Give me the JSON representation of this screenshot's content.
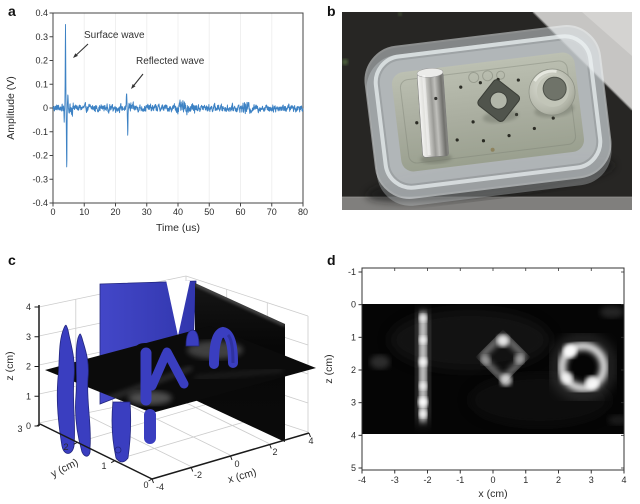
{
  "figure": {
    "panel_labels": {
      "a": "a",
      "b": "b",
      "c": "c",
      "d": "d"
    },
    "panels": {
      "b": {
        "type": "photograph",
        "objects": [
          "transparent-plastic-container",
          "metal-cylinder-rod",
          "metal-diamond-washer",
          "metal-ring",
          "perforated-metal-plate",
          "dark-table-surface"
        ]
      }
    }
  },
  "chart_data": [
    {
      "panel": "a",
      "type": "line",
      "xlabel": "Time (us)",
      "ylabel": "Amplitude (V)",
      "xlim": [
        0,
        80
      ],
      "ylim": [
        -0.4,
        0.4
      ],
      "xtick_labels": [
        "0",
        "10",
        "20",
        "30",
        "40",
        "50",
        "60",
        "70",
        "80"
      ],
      "ytick_labels": [
        "0.4",
        "0.3",
        "0.2",
        "0.1",
        "0",
        "-0.1",
        "-0.2",
        "-0.3",
        "-0.4"
      ],
      "line_color": "#3d82c4",
      "annotations": [
        {
          "text": "Surface wave",
          "points_to_time_us": 6
        },
        {
          "text": "Reflected wave",
          "points_to_time_us": 24
        }
      ],
      "events": [
        {
          "name": "Surface wave",
          "peak_time_us": 4,
          "peak_amplitude_v": 0.36,
          "min_amplitude_v": -0.25,
          "lobes": [
            [
              3.58,
              -0.045,
              0.1
            ],
            [
              4.0,
              0.36,
              0.11
            ],
            [
              4.38,
              -0.25,
              0.13
            ],
            [
              4.75,
              0.06,
              0.15
            ],
            [
              5.1,
              -0.03,
              0.2
            ]
          ]
        },
        {
          "name": "Reflected wave",
          "peak_time_us": 23.5,
          "peak_amplitude_v": 0.065,
          "min_amplitude_v": -0.11,
          "lobes": [
            [
              23.2,
              -0.03,
              0.12
            ],
            [
              23.55,
              0.065,
              0.11
            ],
            [
              23.9,
              -0.11,
              0.12
            ],
            [
              24.3,
              0.035,
              0.14
            ]
          ]
        }
      ],
      "noise": {
        "base": 0.012,
        "seed": 1234,
        "bursts": [
          [
            4.8,
            7.5,
            0.012
          ],
          [
            22.5,
            26,
            0.007
          ],
          [
            38,
            46,
            0.008
          ],
          [
            60,
            64,
            0.008
          ]
        ]
      }
    },
    {
      "panel": "c",
      "type": "3d-isosurface",
      "xlabel": "x (cm)",
      "ylabel": "y (cm)",
      "zlabel": "z (cm)",
      "xlim": [
        -4,
        4
      ],
      "ylim": [
        0,
        3
      ],
      "zlim": [
        0,
        4
      ],
      "xtick_labels": [
        "-4",
        "-2",
        "0",
        "2",
        "4"
      ],
      "ytick_labels": [
        "0",
        "1",
        "2",
        "3"
      ],
      "ztick_labels": [
        "0",
        "1",
        "2",
        "3",
        "4"
      ],
      "isosurface_color": "#3a3ec0",
      "content": "blue isosurfaces of three imaged objects with two intersecting grayscale image slice planes"
    },
    {
      "panel": "d",
      "type": "heatmap",
      "xlabel": "x (cm)",
      "ylabel": "z (cm)",
      "xlim": [
        -4,
        4
      ],
      "ylim_reversed": [
        -1,
        5
      ],
      "xtick_labels": [
        "-4",
        "-3",
        "-2",
        "-1",
        "0",
        "1",
        "2",
        "3",
        "4"
      ],
      "ytick_labels": [
        "-1",
        "0",
        "1",
        "2",
        "3",
        "4",
        "5"
      ],
      "image_extent": {
        "x": [
          -4,
          4
        ],
        "z": [
          0,
          3.9
        ]
      },
      "objects": [
        {
          "shape": "vertical-bar",
          "x_cm": -2.2,
          "z_range_cm": [
            0.45,
            3.4
          ]
        },
        {
          "shape": "diamond-ring",
          "center_cm": [
            0.3,
            1.65
          ],
          "width_cm": 1.4
        },
        {
          "shape": "circular-ring",
          "center_cm": [
            2.75,
            1.95
          ],
          "outer_diameter_cm": 1.9
        }
      ]
    }
  ]
}
